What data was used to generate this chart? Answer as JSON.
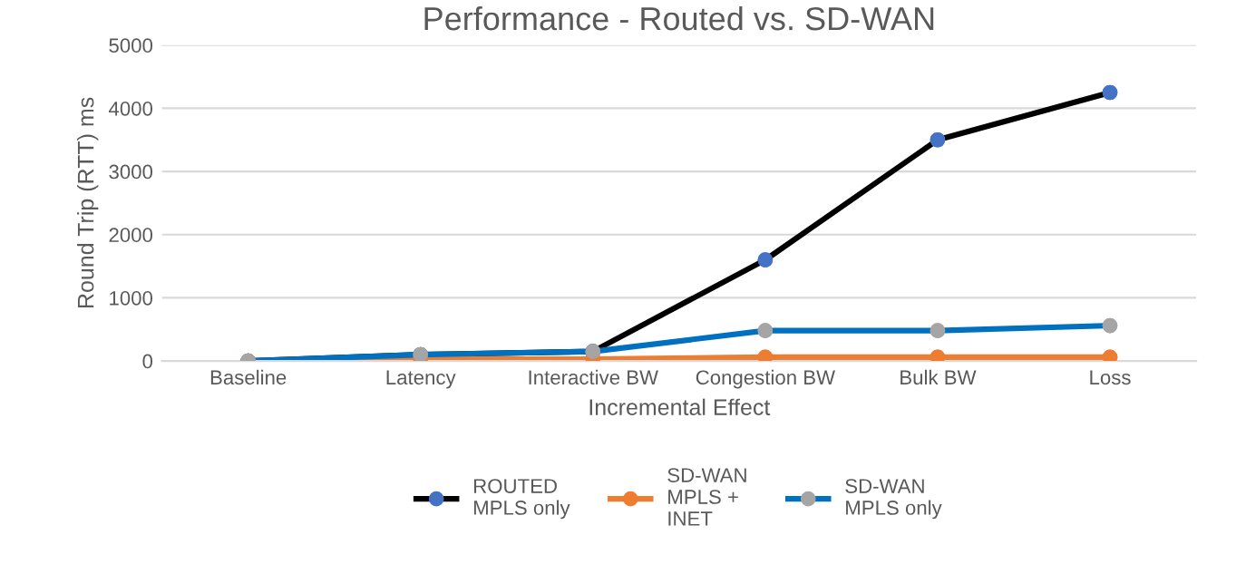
{
  "chart_data": {
    "type": "line",
    "title": "Performance - Routed vs. SD-WAN",
    "xlabel": "Incremental Effect",
    "ylabel": "Round Trip (RTT) ms",
    "categories": [
      "Baseline",
      "Latency",
      "Interactive BW",
      "Congestion BW",
      "Bulk BW",
      "Loss"
    ],
    "series": [
      {
        "name": "ROUTED\nMPLS only",
        "color": "#000000",
        "colors": [
          "#4472c4",
          "#4472c4",
          "#4472c4",
          "#4472c4",
          "#4472c4",
          "#4472c4"
        ],
        "values": [
          0,
          100,
          150,
          1600,
          3500,
          4250
        ]
      },
      {
        "name": "SD-WAN\nMPLS +\nINET",
        "color": "#ed7d31",
        "colors": [
          "#ed7d31",
          "#ed7d31",
          "#ed7d31",
          "#ed7d31",
          "#ed7d31",
          "#ed7d31"
        ],
        "values": [
          0,
          30,
          30,
          60,
          60,
          60
        ]
      },
      {
        "name": "SD-WAN\nMPLS only",
        "color": "#0070c0",
        "colors": [
          "#a5a5a5",
          "#a5a5a5",
          "#a5a5a5",
          "#a5a5a5",
          "#a5a5a5",
          "#a5a5a5"
        ],
        "values": [
          0,
          100,
          150,
          480,
          480,
          560
        ]
      }
    ],
    "ylim": [
      0,
      5000
    ],
    "yticks": [
      0,
      1000,
      2000,
      3000,
      4000,
      5000
    ],
    "grid": "y",
    "legend": "bottom",
    "marker": "circle",
    "line_style": "solid"
  }
}
